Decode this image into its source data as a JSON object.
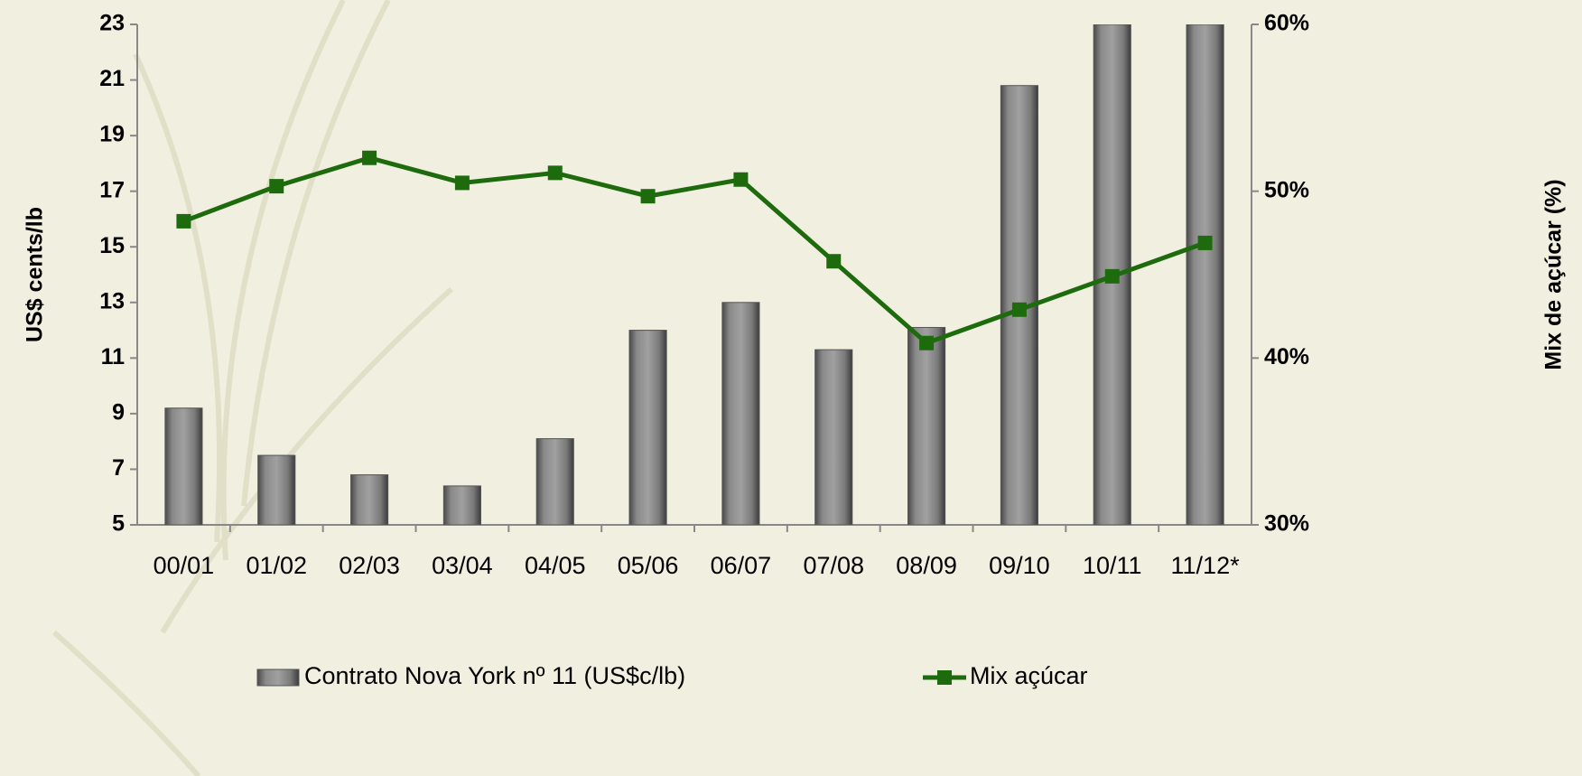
{
  "chart_data": {
    "type": "bar",
    "categories": [
      "00/01",
      "01/02",
      "02/03",
      "03/04",
      "04/05",
      "05/06",
      "06/07",
      "07/08",
      "08/09",
      "09/10",
      "10/11",
      "11/12*"
    ],
    "series": [
      {
        "name": "Contrato Nova York nº 11 (US$c/lb)",
        "type": "bar",
        "color": "#7a7a7a",
        "values": [
          9.2,
          7.5,
          6.8,
          6.4,
          8.1,
          12.0,
          13.0,
          11.3,
          12.1,
          20.8,
          23,
          23
        ]
      },
      {
        "name": "Mix açúcar",
        "type": "line",
        "axis": "y2",
        "color": "#1e6b0e",
        "values": [
          48.2,
          50.3,
          52.0,
          50.5,
          51.1,
          49.7,
          50.7,
          45.8,
          40.9,
          42.9,
          44.9,
          46.9
        ]
      }
    ],
    "y_label": "US$ cents/lb",
    "y2_label": "Mix de açúcar (%)",
    "ylim": [
      5,
      23
    ],
    "yticks": [
      5,
      7,
      9,
      11,
      13,
      15,
      17,
      19,
      21,
      23
    ],
    "y2lim": [
      30,
      60
    ],
    "y2ticks": [
      {
        "value": 30,
        "label": "30%"
      },
      {
        "value": 40,
        "label": "40%"
      },
      {
        "value": 50,
        "label": "50%"
      },
      {
        "value": 60,
        "label": "60%"
      }
    ],
    "legend": "bottom"
  }
}
